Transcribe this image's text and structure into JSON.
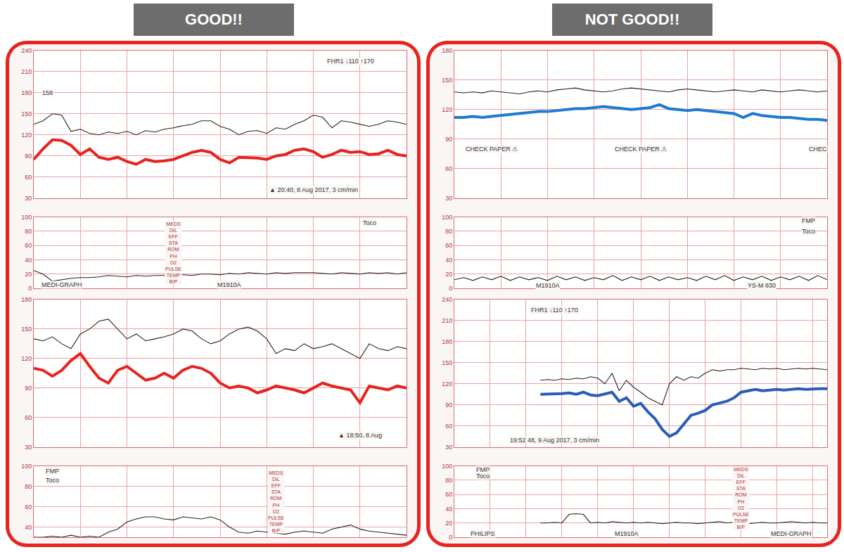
{
  "headers": [
    "GOOD!!",
    "NOT GOOD!!"
  ],
  "chart_data": [
    {
      "type": "line",
      "grid": true,
      "tick_labels": "y",
      "x": [
        0,
        1,
        2,
        3,
        4,
        5,
        6,
        7,
        8,
        9,
        10,
        11,
        12,
        13,
        14,
        15,
        16,
        17,
        18,
        19,
        20,
        21,
        22,
        23,
        24,
        25,
        26,
        27,
        28,
        29,
        30,
        31,
        32,
        33,
        34,
        35,
        36,
        37,
        38,
        39,
        40
      ],
      "xlim": [
        0,
        40
      ],
      "xticks": [
        0,
        5,
        10,
        15,
        20,
        25,
        30,
        35,
        40
      ],
      "ylim": [
        30,
        240
      ],
      "yticks": [
        30,
        60,
        90,
        120,
        150,
        180,
        210,
        240
      ],
      "y2lim": [
        0,
        100
      ],
      "y2ticks": [
        0,
        20,
        40,
        60,
        80,
        100
      ],
      "series": [
        {
          "color": "#222222",
          "line_style": "solid",
          "values": [
            135,
            140,
            150,
            148,
            125,
            128,
            122,
            120,
            124,
            122,
            125,
            120,
            126,
            124,
            128,
            130,
            133,
            135,
            140,
            140,
            132,
            128,
            120,
            125,
            126,
            122,
            130,
            128,
            135,
            140,
            148,
            145,
            130,
            140,
            138,
            135,
            132,
            135,
            140,
            138,
            135
          ]
        },
        {
          "color": "#e8231f",
          "line_style": "bold",
          "values": [
            85,
            100,
            113,
            112,
            105,
            92,
            100,
            88,
            85,
            88,
            82,
            78,
            85,
            82,
            83,
            85,
            90,
            95,
            98,
            95,
            85,
            80,
            88,
            88,
            87,
            85,
            90,
            92,
            98,
            100,
            96,
            88,
            92,
            98,
            95,
            96,
            92,
            93,
            98,
            92,
            90
          ]
        },
        {
          "color": "#222222",
          "line_style": "solid",
          "axis": "y2",
          "values": [
            25,
            20,
            10,
            12,
            14,
            15,
            15,
            16,
            18,
            17,
            16,
            18,
            17,
            18,
            18,
            20,
            19,
            18,
            20,
            20,
            19,
            21,
            20,
            22,
            21,
            20,
            22,
            21,
            22,
            22,
            22,
            21,
            20,
            22,
            21,
            20,
            22,
            21,
            22,
            20,
            22
          ]
        }
      ],
      "annotations": [
        {
          "text": "FHR1 ↓110 ↑170",
          "x": 34,
          "y": 225
        },
        {
          "text": "158",
          "x": 1.5,
          "y": 180
        },
        {
          "text": "▲ 20:40, 8 Aug 2017, 3 cm/min",
          "x": 30,
          "y": 42
        },
        {
          "text": "Toco",
          "x": 36,
          "y": 92,
          "axis": "y2"
        },
        {
          "text": [
            "MEDS",
            "DIL",
            "EFF",
            "STA",
            "ROM",
            "PH",
            "O2",
            "PULSE",
            "TEMP",
            "B/P"
          ],
          "x": 15,
          "y": 50,
          "axis": "y2"
        },
        {
          "text": "MEDI-GRAPH",
          "x": 3,
          "y": 5,
          "axis": "y2"
        },
        {
          "text": "M1910A",
          "x": 21,
          "y": 5,
          "axis": "y2"
        }
      ]
    },
    {
      "type": "line",
      "grid": true,
      "tick_labels": "y",
      "x": [
        0,
        1,
        2,
        3,
        4,
        5,
        6,
        7,
        8,
        9,
        10,
        11,
        12,
        13,
        14,
        15,
        16,
        17,
        18,
        19,
        20,
        21,
        22,
        23,
        24,
        25,
        26,
        27,
        28,
        29,
        30,
        31,
        32,
        33,
        34,
        35,
        36,
        37,
        38,
        39,
        40
      ],
      "xlim": [
        0,
        40
      ],
      "xticks": [
        0,
        5,
        10,
        15,
        20,
        25,
        30,
        35,
        40
      ],
      "ylim": [
        30,
        180
      ],
      "yticks": [
        30,
        60,
        90,
        120,
        150,
        180
      ],
      "y2lim": [
        0,
        100
      ],
      "y2ticks": [
        0,
        20,
        40,
        60,
        80,
        100
      ],
      "series": [
        {
          "color": "#222222",
          "line_style": "solid",
          "values": [
            138,
            137,
            138,
            137,
            139,
            138,
            137,
            136,
            138,
            139,
            138,
            140,
            141,
            142,
            140,
            139,
            138,
            139,
            141,
            142,
            141,
            140,
            139,
            138,
            140,
            141,
            140,
            139,
            138,
            139,
            140,
            139,
            138,
            140,
            139,
            138,
            139,
            140,
            139,
            138,
            139
          ]
        },
        {
          "color": "#1f7ad1",
          "line_style": "bold",
          "values": [
            112,
            112,
            113,
            112,
            113,
            114,
            115,
            116,
            117,
            118,
            118,
            119,
            120,
            121,
            121,
            122,
            123,
            122,
            121,
            120,
            121,
            122,
            125,
            121,
            120,
            119,
            120,
            119,
            118,
            117,
            116,
            112,
            116,
            114,
            113,
            112,
            112,
            111,
            110,
            110,
            109
          ]
        },
        {
          "color": "#222222",
          "line_style": "solid",
          "axis": "y2",
          "values": [
            12,
            15,
            11,
            16,
            12,
            17,
            11,
            16,
            12,
            15,
            11,
            17,
            12,
            16,
            11,
            15,
            12,
            18,
            11,
            16,
            12,
            17,
            11,
            16,
            12,
            15,
            11,
            17,
            12,
            18,
            11,
            16,
            12,
            17,
            11,
            16,
            12,
            17,
            11,
            18,
            12
          ]
        }
      ],
      "annotations": [
        {
          "text": "CHECK PAPER ⚠",
          "x": 4,
          "y": 80
        },
        {
          "text": "CHECK PAPER ⚠",
          "x": 20,
          "y": 80
        },
        {
          "text": "CHEC",
          "x": 39,
          "y": 80
        },
        {
          "text": "FMP",
          "x": 38,
          "y": 95,
          "axis": "y2"
        },
        {
          "text": "Toco",
          "x": 38,
          "y": 80,
          "axis": "y2"
        },
        {
          "text": "M1910A",
          "x": 10,
          "y": 4,
          "axis": "y2"
        },
        {
          "text": "YS-M 830",
          "x": 33,
          "y": 4,
          "axis": "y2"
        }
      ]
    },
    {
      "type": "line",
      "grid": true,
      "tick_labels": "y",
      "x": [
        0,
        1,
        2,
        3,
        4,
        5,
        6,
        7,
        8,
        9,
        10,
        11,
        12,
        13,
        14,
        15,
        16,
        17,
        18,
        19,
        20,
        21,
        22,
        23,
        24,
        25,
        26,
        27,
        28,
        29,
        30,
        31,
        32,
        33,
        34,
        35,
        36,
        37,
        38,
        39,
        40
      ],
      "xlim": [
        0,
        40
      ],
      "xticks": [
        0,
        5,
        10,
        15,
        20,
        25,
        30,
        35,
        40
      ],
      "ylim": [
        30,
        180
      ],
      "yticks": [
        30,
        60,
        90,
        120,
        150,
        180
      ],
      "y2lim": [
        30,
        100
      ],
      "y2ticks": [
        40,
        60,
        80,
        100
      ],
      "series": [
        {
          "color": "#222222",
          "line_style": "solid",
          "values": [
            140,
            138,
            142,
            135,
            130,
            145,
            150,
            158,
            160,
            150,
            140,
            145,
            138,
            140,
            142,
            145,
            150,
            148,
            140,
            135,
            138,
            145,
            150,
            152,
            148,
            140,
            125,
            130,
            128,
            135,
            130,
            132,
            135,
            130,
            125,
            120,
            135,
            130,
            128,
            132,
            130
          ]
        },
        {
          "color": "#e8231f",
          "line_style": "bold",
          "values": [
            110,
            108,
            102,
            108,
            118,
            125,
            112,
            100,
            95,
            108,
            112,
            105,
            98,
            100,
            105,
            100,
            108,
            112,
            110,
            105,
            95,
            90,
            92,
            90,
            85,
            88,
            92,
            90,
            88,
            85,
            90,
            95,
            92,
            90,
            88,
            75,
            92,
            90,
            88,
            92,
            90
          ]
        },
        {
          "color": "#222222",
          "line_style": "solid",
          "axis": "y2",
          "values": [
            30,
            30,
            31,
            30,
            32,
            30,
            31,
            30,
            35,
            38,
            45,
            48,
            50,
            50,
            48,
            47,
            50,
            49,
            48,
            50,
            47,
            40,
            35,
            34,
            36,
            35,
            34,
            33,
            35,
            36,
            35,
            34,
            38,
            40,
            42,
            38,
            36,
            35,
            34,
            33,
            32
          ]
        }
      ],
      "annotations": [
        {
          "text": "▲ 18:50, 8 Aug",
          "x": 35,
          "y": 42
        },
        {
          "text": "FMP",
          "x": 2,
          "y": 95,
          "axis": "y2"
        },
        {
          "text": "Toco",
          "x": 2,
          "y": 86,
          "axis": "y2"
        },
        {
          "text": [
            "MEDS",
            "DIL",
            "EFF",
            "STA",
            "ROM",
            "PH",
            "O2",
            "PULSE",
            "TEMP",
            "B/P"
          ],
          "x": 26,
          "y": 65,
          "axis": "y2"
        }
      ]
    },
    {
      "type": "line",
      "grid": true,
      "tick_labels": "y",
      "x": [
        12,
        13,
        14,
        15,
        16,
        17,
        18,
        19,
        20,
        21,
        22,
        23,
        24,
        25,
        26,
        27,
        28,
        29,
        30,
        31,
        32,
        33,
        34,
        35,
        36,
        37,
        38,
        39,
        40,
        41,
        42,
        43,
        44,
        45,
        46,
        47,
        48,
        49,
        50,
        51,
        52
      ],
      "xlim": [
        0,
        52
      ],
      "xticks": [
        0,
        5,
        10,
        15,
        20,
        25,
        30,
        35,
        40,
        45,
        50
      ],
      "ylim": [
        30,
        240
      ],
      "yticks": [
        30,
        60,
        90,
        120,
        150,
        180,
        210,
        240
      ],
      "y2lim": [
        0,
        100
      ],
      "y2ticks": [
        0,
        20,
        40,
        60,
        80,
        100
      ],
      "series": [
        {
          "color": "#222222",
          "line_style": "solid",
          "values": [
            125,
            126,
            125,
            127,
            126,
            128,
            127,
            130,
            128,
            120,
            135,
            110,
            125,
            115,
            108,
            100,
            95,
            90,
            120,
            130,
            125,
            130,
            128,
            135,
            140,
            138,
            140,
            140,
            142,
            141,
            140,
            142,
            141,
            142,
            140,
            141,
            142,
            141,
            142,
            141,
            140
          ]
        },
        {
          "color": "#2a5db8",
          "line_style": "bold",
          "values": [
            105,
            105,
            106,
            106,
            107,
            105,
            108,
            104,
            103,
            106,
            108,
            95,
            100,
            88,
            92,
            80,
            70,
            55,
            45,
            50,
            62,
            75,
            78,
            82,
            90,
            92,
            95,
            100,
            108,
            110,
            112,
            110,
            111,
            112,
            111,
            112,
            113,
            112,
            113,
            113,
            113
          ]
        },
        {
          "color": "#222222",
          "line_style": "solid",
          "axis": "y2",
          "values": [
            20,
            20,
            21,
            20,
            32,
            33,
            32,
            20,
            21,
            20,
            22,
            21,
            20,
            21,
            20,
            21,
            20,
            19,
            20,
            21,
            20,
            20,
            19,
            20,
            21,
            22,
            20,
            21,
            20,
            19,
            20,
            21,
            20,
            20,
            21,
            22,
            21,
            20,
            21,
            20,
            20
          ]
        }
      ],
      "annotations": [
        {
          "text": "FHR1 ↓110 ↑170",
          "x": 14,
          "y": 225
        },
        {
          "text": "19:52 48, 9 Aug 2017, 3 cm/min",
          "x": 14,
          "y": 40
        },
        {
          "text": "FMP",
          "x": 4,
          "y": 95,
          "axis": "y2"
        },
        {
          "text": "Toco",
          "x": 4,
          "y": 86,
          "axis": "y2"
        },
        {
          "text": [
            "MEDS",
            "DIL",
            "EFF",
            "STA",
            "ROM",
            "PH",
            "O2",
            "PULSE",
            "TEMP",
            "B/P"
          ],
          "x": 40,
          "y": 55,
          "axis": "y2"
        },
        {
          "text": "PHILIPS",
          "x": 4,
          "y": 5,
          "axis": "y2"
        },
        {
          "text": "M1910A",
          "x": 24,
          "y": 5,
          "axis": "y2"
        },
        {
          "text": "MEDI-GRAPH",
          "x": 47,
          "y": 5,
          "axis": "y2"
        }
      ]
    }
  ]
}
